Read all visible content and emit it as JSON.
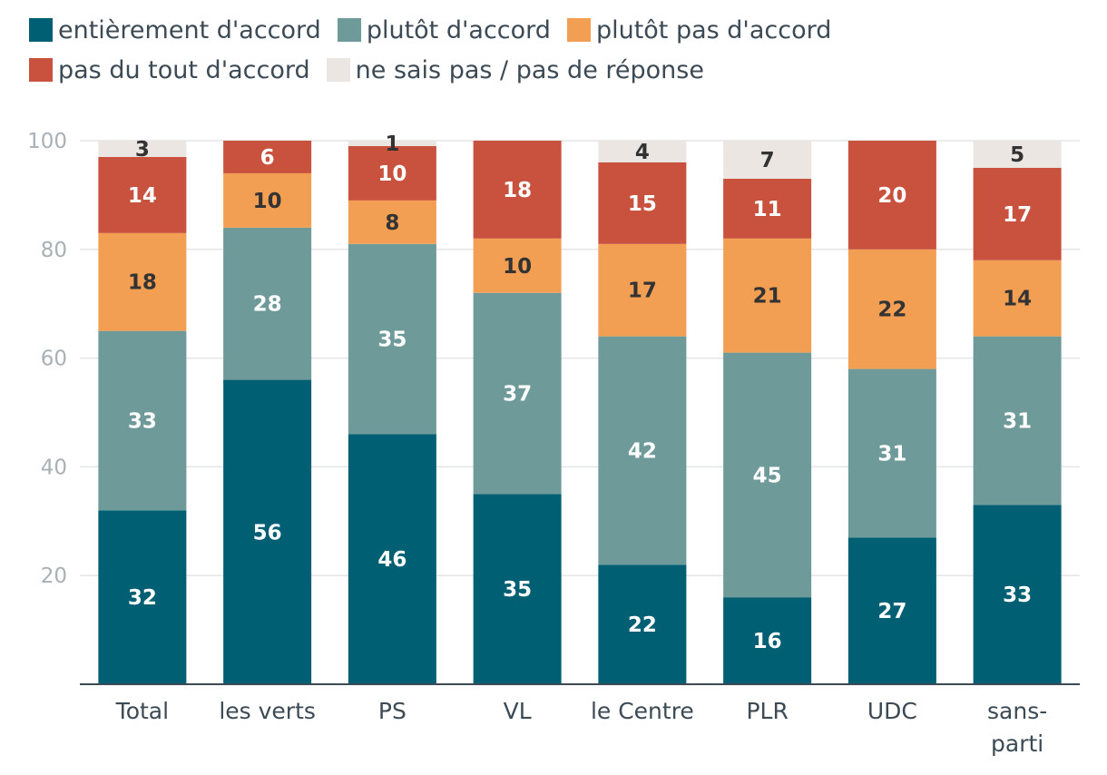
{
  "chart_data": {
    "type": "bar",
    "stacked": true,
    "title": "",
    "xlabel": "",
    "ylabel": "",
    "ylim": [
      0,
      100
    ],
    "yticks": [
      20,
      40,
      60,
      80,
      100
    ],
    "grid": true,
    "legend_position": "top",
    "categories": [
      "Total",
      "les verts",
      "PS",
      "VL",
      "le Centre",
      "PLR",
      "UDC",
      "sans-parti"
    ],
    "series": [
      {
        "name": "entièrement d'accord",
        "color": "#005f73",
        "label_color": "#ffffff",
        "values": [
          32,
          56,
          46,
          35,
          22,
          16,
          27,
          33
        ]
      },
      {
        "name": "plutôt d'accord",
        "color": "#6f9a9a",
        "label_color": "#ffffff",
        "values": [
          33,
          28,
          35,
          37,
          42,
          45,
          31,
          31
        ]
      },
      {
        "name": "plutôt pas d'accord",
        "color": "#f39f53",
        "label_color": "#333333",
        "values": [
          18,
          10,
          8,
          10,
          17,
          21,
          22,
          14
        ]
      },
      {
        "name": "pas du tout d'accord",
        "color": "#c8523e",
        "label_color": "#ffffff",
        "values": [
          14,
          6,
          10,
          18,
          15,
          11,
          20,
          17
        ]
      },
      {
        "name": "ne sais pas / pas de réponse",
        "color": "#ebe6e1",
        "label_color": "#333333",
        "values": [
          3,
          0,
          1,
          0,
          4,
          7,
          0,
          5
        ]
      }
    ]
  }
}
